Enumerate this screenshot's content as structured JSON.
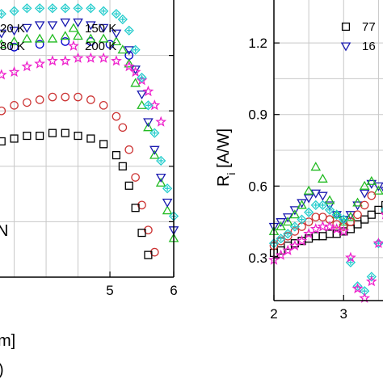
{
  "chart_data": [
    {
      "type": "scatter",
      "title": "",
      "xlabel": "m]",
      "ylabel": "",
      "xlim": [
        3.1,
        6.0
      ],
      "ylim": [
        0.0,
        1.0
      ],
      "x_ticks": [
        5,
        6
      ],
      "x_tick_labels": [
        "5",
        "6"
      ],
      "grid": true,
      "legend": "top-left",
      "annotations": [
        "N",
        ")"
      ],
      "series": [
        {
          "name": "120 K",
          "legend_label": "20 K",
          "marker": "circle",
          "color": "#0000cc",
          "x": [
            3.1,
            3.5,
            3.9,
            4.3,
            4.7,
            5.0,
            5.3
          ],
          "y": [
            0.82,
            0.83,
            0.84,
            0.85,
            0.85,
            0.84,
            0.8
          ]
        },
        {
          "name": "150 K",
          "legend_label": "150 K",
          "marker": "triangle-up",
          "color": "#22bb22",
          "x": [
            3.1,
            3.3,
            3.5,
            3.7,
            3.9,
            4.1,
            4.3,
            4.5,
            4.7,
            4.9,
            5.1,
            5.2,
            5.3,
            5.4,
            5.5,
            5.6,
            5.7,
            5.8,
            5.9,
            6.0
          ],
          "y": [
            0.84,
            0.84,
            0.85,
            0.86,
            0.86,
            0.86,
            0.87,
            0.87,
            0.86,
            0.86,
            0.85,
            0.82,
            0.77,
            0.7,
            0.62,
            0.54,
            0.44,
            0.34,
            0.24,
            0.14
          ]
        },
        {
          "name": "180 K",
          "legend_label": "80 K",
          "marker": "triangle-down",
          "color": "#1a1ab0",
          "x": [
            3.1,
            3.3,
            3.5,
            3.7,
            3.9,
            4.1,
            4.3,
            4.5,
            4.7,
            4.9,
            5.1,
            5.3,
            5.4,
            5.5,
            5.6,
            5.7,
            5.8,
            5.9,
            6.0
          ],
          "y": [
            0.87,
            0.88,
            0.89,
            0.9,
            0.91,
            0.91,
            0.92,
            0.92,
            0.91,
            0.9,
            0.88,
            0.82,
            0.75,
            0.66,
            0.56,
            0.46,
            0.36,
            0.27,
            0.17
          ]
        },
        {
          "name": "200 K",
          "legend_label": "200 K",
          "marker": "star",
          "color": "#ee22cc",
          "x": [
            3.1,
            3.3,
            3.5,
            3.7,
            3.9,
            4.1,
            4.3,
            4.5,
            4.7,
            4.9,
            5.1,
            5.3,
            5.4,
            5.5,
            5.6,
            5.7,
            5.8
          ],
          "y": [
            0.72,
            0.73,
            0.74,
            0.76,
            0.77,
            0.78,
            0.78,
            0.79,
            0.79,
            0.79,
            0.78,
            0.76,
            0.74,
            0.71,
            0.67,
            0.62,
            0.56
          ]
        },
        {
          "name": "cyan",
          "legend_label": "",
          "marker": "diamond-cross",
          "color": "#22cccc",
          "x": [
            3.1,
            3.3,
            3.5,
            3.7,
            3.9,
            4.1,
            4.3,
            4.5,
            4.7,
            4.9,
            5.1,
            5.2,
            5.3,
            5.4,
            5.5,
            5.6,
            5.7,
            5.8,
            5.9,
            6.0
          ],
          "y": [
            0.95,
            0.95,
            0.96,
            0.97,
            0.97,
            0.97,
            0.97,
            0.97,
            0.97,
            0.96,
            0.95,
            0.93,
            0.89,
            0.82,
            0.72,
            0.62,
            0.52,
            0.42,
            0.32,
            0.22
          ]
        },
        {
          "name": "red",
          "legend_label": "",
          "marker": "circle-open",
          "color": "#cc3333",
          "x": [
            3.1,
            3.3,
            3.5,
            3.7,
            3.9,
            4.1,
            4.3,
            4.5,
            4.7,
            4.9,
            5.1,
            5.2,
            5.3,
            5.4,
            5.5,
            5.6,
            5.7
          ],
          "y": [
            0.58,
            0.6,
            0.62,
            0.63,
            0.64,
            0.65,
            0.65,
            0.65,
            0.64,
            0.62,
            0.58,
            0.54,
            0.46,
            0.36,
            0.26,
            0.17,
            0.09
          ]
        },
        {
          "name": "black",
          "legend_label": "",
          "marker": "square",
          "color": "#000000",
          "x": [
            3.1,
            3.3,
            3.5,
            3.7,
            3.9,
            4.1,
            4.3,
            4.5,
            4.7,
            4.9,
            5.1,
            5.2,
            5.3,
            5.4,
            5.5,
            5.6
          ],
          "y": [
            0.48,
            0.49,
            0.5,
            0.51,
            0.51,
            0.52,
            0.52,
            0.51,
            0.5,
            0.48,
            0.44,
            0.4,
            0.33,
            0.25,
            0.16,
            0.08
          ]
        }
      ]
    },
    {
      "type": "scatter",
      "title": "",
      "xlabel": "",
      "ylabel": "R_i [A/W]",
      "ylabel_main": "R",
      "ylabel_sub": "i",
      "ylabel_rest": " [A/W]",
      "xlim": [
        2.0,
        3.75
      ],
      "ylim": [
        0.12,
        1.38
      ],
      "x_ticks": [
        2,
        3
      ],
      "x_tick_labels": [
        "2",
        "3"
      ],
      "y_ticks": [
        0.3,
        0.6,
        0.9,
        1.2
      ],
      "y_tick_labels": [
        "0.3",
        "0.6",
        "0.9",
        "1.2"
      ],
      "grid": true,
      "legend": "top-right",
      "series": [
        {
          "name": "77 K",
          "legend_label": "77",
          "marker": "square",
          "color": "#000000",
          "x": [
            2.0,
            2.1,
            2.2,
            2.3,
            2.4,
            2.5,
            2.6,
            2.7,
            2.8,
            2.9,
            3.0,
            3.1,
            3.2,
            3.3,
            3.4,
            3.5,
            3.6,
            3.7
          ],
          "y": [
            0.32,
            0.33,
            0.35,
            0.36,
            0.37,
            0.38,
            0.39,
            0.39,
            0.4,
            0.4,
            0.41,
            0.42,
            0.44,
            0.46,
            0.48,
            0.5,
            0.52,
            0.54
          ]
        },
        {
          "name": "160 K",
          "legend_label": "16",
          "marker": "triangle-down",
          "color": "#1a1ab0",
          "x": [
            2.0,
            2.1,
            2.2,
            2.3,
            2.4,
            2.5,
            2.6,
            2.7,
            2.8,
            2.9,
            3.0,
            3.1,
            3.2,
            3.3,
            3.4,
            3.5,
            3.6,
            3.7
          ],
          "y": [
            0.43,
            0.45,
            0.47,
            0.5,
            0.53,
            0.55,
            0.57,
            0.56,
            0.52,
            0.48,
            0.46,
            0.48,
            0.52,
            0.57,
            0.61,
            0.6,
            0.58,
            0.6
          ]
        },
        {
          "name": "green",
          "legend_label": "",
          "marker": "triangle-up",
          "color": "#22bb22",
          "x": [
            2.0,
            2.1,
            2.2,
            2.3,
            2.4,
            2.5,
            2.6,
            2.7,
            2.8,
            2.9,
            3.0,
            3.1,
            3.2,
            3.3,
            3.4,
            3.5
          ],
          "y": [
            0.41,
            0.43,
            0.45,
            0.48,
            0.52,
            0.58,
            0.68,
            0.63,
            0.54,
            0.48,
            0.45,
            0.47,
            0.53,
            0.6,
            0.62,
            0.58
          ]
        },
        {
          "name": "red",
          "legend_label": "",
          "marker": "circle-open",
          "color": "#cc3333",
          "x": [
            2.0,
            2.1,
            2.2,
            2.3,
            2.4,
            2.5,
            2.6,
            2.7,
            2.8,
            2.9,
            3.0,
            3.1,
            3.2,
            3.3,
            3.4
          ],
          "y": [
            0.35,
            0.37,
            0.39,
            0.41,
            0.43,
            0.45,
            0.47,
            0.47,
            0.46,
            0.44,
            0.43,
            0.45,
            0.48,
            0.52,
            0.56
          ]
        },
        {
          "name": "cyan",
          "legend_label": "",
          "marker": "diamond-cross",
          "color": "#22cccc",
          "x": [
            2.0,
            2.1,
            2.2,
            2.3,
            2.4,
            2.5,
            2.6,
            2.7,
            2.8,
            2.9,
            3.0,
            3.1,
            3.2,
            3.3,
            3.4,
            3.5,
            3.6,
            3.7
          ],
          "y": [
            0.36,
            0.38,
            0.4,
            0.43,
            0.46,
            0.49,
            0.52,
            0.52,
            0.5,
            0.48,
            0.46,
            0.28,
            0.18,
            0.16,
            0.22,
            0.36,
            0.5,
            0.56
          ]
        },
        {
          "name": "200 K",
          "legend_label": "",
          "marker": "star",
          "color": "#ee22cc",
          "x": [
            2.0,
            2.1,
            2.2,
            2.3,
            2.4,
            2.5,
            2.6,
            2.7,
            2.8,
            2.9,
            3.0,
            3.1,
            3.2,
            3.3,
            3.4,
            3.5,
            3.6,
            3.7
          ],
          "y": [
            0.29,
            0.31,
            0.33,
            0.35,
            0.37,
            0.4,
            0.42,
            0.43,
            0.43,
            0.42,
            0.41,
            0.3,
            0.17,
            0.13,
            0.2,
            0.36,
            0.48,
            0.52
          ]
        }
      ]
    }
  ]
}
